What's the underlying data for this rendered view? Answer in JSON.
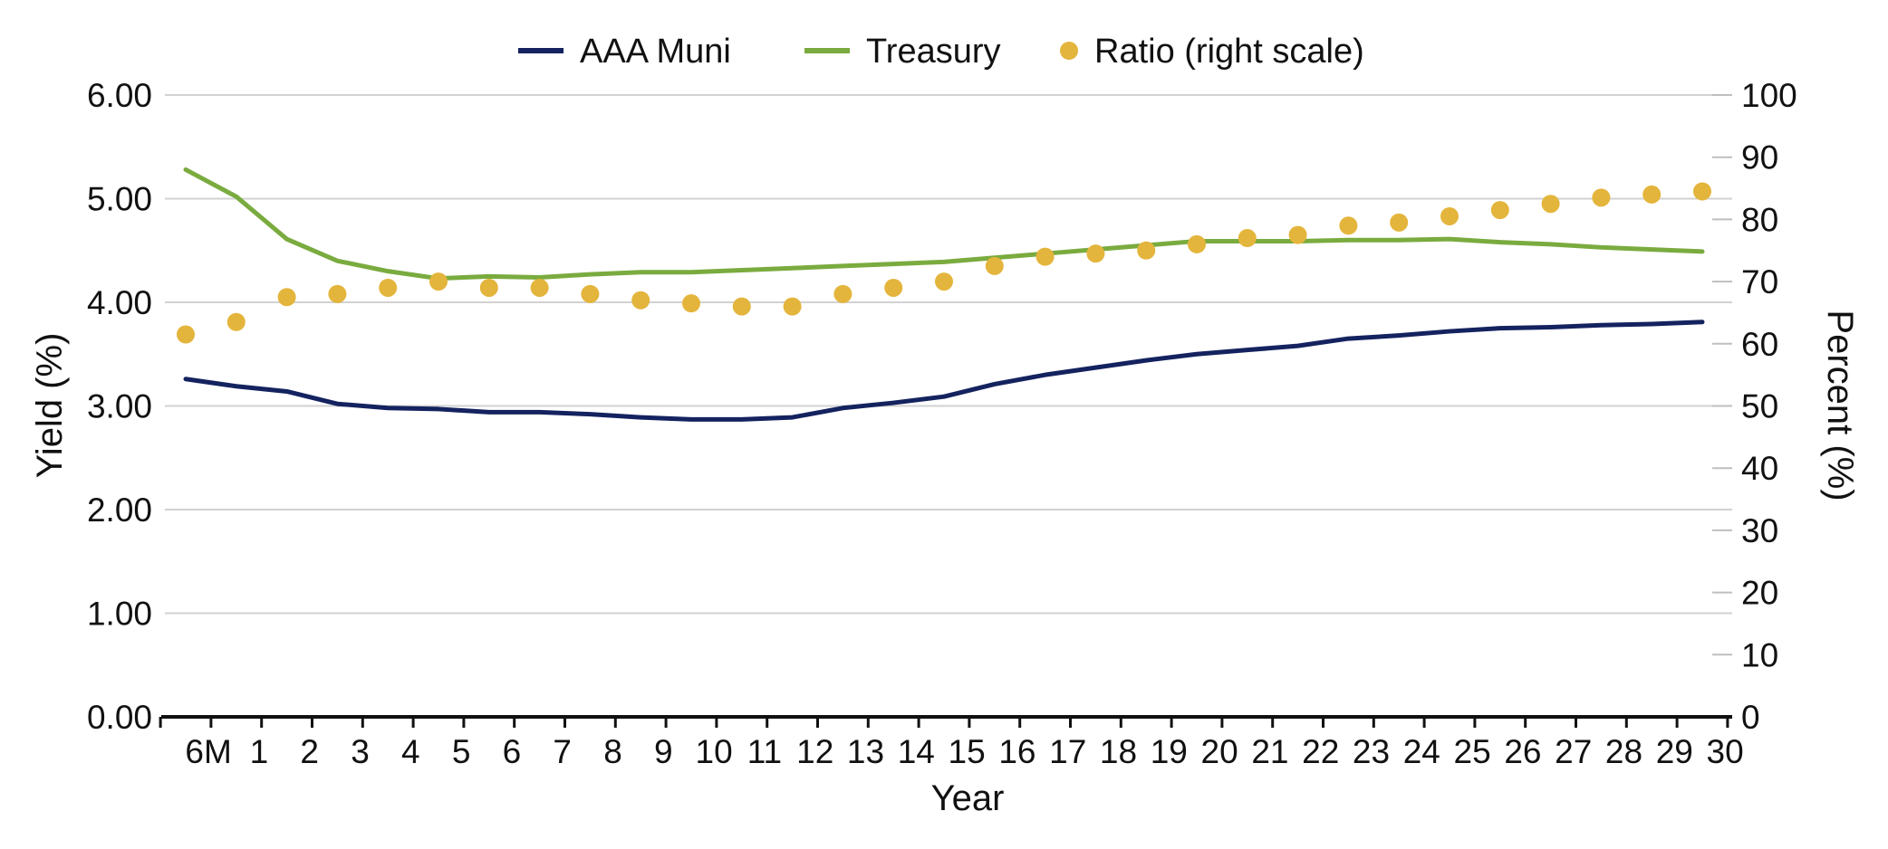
{
  "chart_data": {
    "type": "line",
    "xlabel": "Year",
    "ylabel": "Yield (%)",
    "y2label": "Percent (%)",
    "ylim": [
      0,
      6
    ],
    "y2lim": [
      0,
      100
    ],
    "grid": true,
    "legend_position": "top-center",
    "x_tick_labels": [
      "6M",
      "1",
      "2",
      "3",
      "4",
      "5",
      "6",
      "7",
      "8",
      "9",
      "10",
      "11",
      "12",
      "13",
      "14",
      "15",
      "16",
      "17",
      "18",
      "19",
      "20",
      "21",
      "22",
      "23",
      "24",
      "25",
      "26",
      "27",
      "28",
      "29",
      "30"
    ],
    "y_tick_labels": [
      "0.00",
      "1.00",
      "2.00",
      "3.00",
      "4.00",
      "5.00",
      "6.00"
    ],
    "y2_tick_labels": [
      "0",
      "10",
      "20",
      "30",
      "40",
      "50",
      "60",
      "70",
      "80",
      "90",
      "100"
    ],
    "series": [
      {
        "name": "AAA Muni",
        "type": "line",
        "axis": "left",
        "color": "#14235f",
        "values": [
          3.26,
          3.19,
          3.14,
          3.02,
          2.98,
          2.97,
          2.94,
          2.94,
          2.92,
          2.89,
          2.87,
          2.87,
          2.89,
          2.98,
          3.03,
          3.09,
          3.21,
          3.3,
          3.37,
          3.44,
          3.5,
          3.54,
          3.58,
          3.65,
          3.68,
          3.72,
          3.75,
          3.76,
          3.78,
          3.79,
          3.81
        ]
      },
      {
        "name": "Treasury",
        "type": "line",
        "axis": "left",
        "color": "#7aab3f",
        "values": [
          5.28,
          5.02,
          4.61,
          4.4,
          4.3,
          4.23,
          4.25,
          4.24,
          4.27,
          4.29,
          4.29,
          4.31,
          4.33,
          4.35,
          4.37,
          4.39,
          4.43,
          4.47,
          4.51,
          4.55,
          4.59,
          4.59,
          4.59,
          4.6,
          4.6,
          4.61,
          4.58,
          4.56,
          4.53,
          4.51,
          4.49
        ]
      },
      {
        "name": "Ratio (right scale)",
        "type": "scatter",
        "axis": "right",
        "color": "#e4b53c",
        "values": [
          61.5,
          63.5,
          67.5,
          68,
          69,
          70,
          69,
          69,
          68,
          67,
          66.5,
          66,
          66,
          68,
          69,
          70,
          72.5,
          74,
          74.5,
          75,
          76,
          77,
          77.5,
          79,
          79.5,
          80.5,
          81.5,
          82.5,
          83.5,
          84,
          84.5
        ]
      }
    ]
  }
}
